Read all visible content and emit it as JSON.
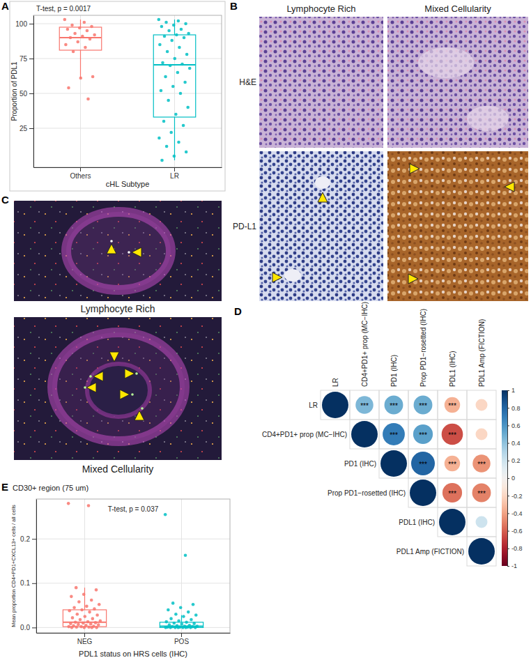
{
  "chart_data": [
    {
      "type": "box",
      "annotation": "T-test, p = 0.0017",
      "x_label": "cHL Subtype",
      "y_label": "Proportion of PDL1",
      "categories": [
        "Others",
        "LR"
      ],
      "colors": [
        "#F8766D",
        "#00BFC4"
      ],
      "boxes": [
        {
          "whisker_low": 61,
          "q1": 81,
          "median": 90,
          "q3": 97.5,
          "whisker_high": 103
        },
        {
          "whisker_low": 2,
          "q1": 33,
          "median": 70.5,
          "q3": 92,
          "whisker_high": 103
        }
      ],
      "points": [
        [
          103,
          101,
          99,
          98,
          97,
          96,
          95,
          93,
          92,
          91,
          90,
          89,
          87,
          85,
          83,
          80,
          62,
          61,
          54,
          46
        ],
        [
          103,
          102,
          101,
          100,
          99,
          98,
          96,
          95,
          93,
          92,
          91,
          90,
          88,
          85,
          83,
          80,
          78,
          75,
          72,
          71,
          70,
          68,
          65,
          62,
          58,
          55,
          52,
          50,
          45,
          40,
          35,
          30,
          27,
          22,
          18,
          15,
          12,
          8,
          5,
          2
        ]
      ],
      "ylim": [
        -3,
        106
      ],
      "yticks": [
        25,
        50,
        75,
        100
      ],
      "grid": true
    },
    {
      "type": "correlation",
      "variables": [
        "LR",
        "CD4+PD1+ prop (MC−IHC)",
        "PD1 (IHC)",
        "Prop PD1−rosetted (IHC)",
        "PDL1 (IHC)",
        "PDL1 Amp (FICTION)"
      ],
      "values": [
        [
          1,
          0.45,
          0.5,
          0.5,
          -0.35,
          -0.2
        ],
        [
          null,
          1,
          0.7,
          0.55,
          -0.65,
          -0.2
        ],
        [
          null,
          null,
          1,
          0.8,
          -0.35,
          -0.45
        ],
        [
          null,
          null,
          null,
          1,
          -0.55,
          -0.5
        ],
        [
          null,
          null,
          null,
          null,
          1,
          0.2
        ],
        [
          null,
          null,
          null,
          null,
          null,
          1
        ]
      ],
      "significance": [
        [
          null,
          "***",
          "***",
          "***",
          "***",
          null
        ],
        [
          null,
          null,
          "***",
          "***",
          "***",
          null
        ],
        [
          null,
          null,
          null,
          "***",
          "***",
          "***"
        ],
        [
          null,
          null,
          null,
          null,
          "***",
          "***"
        ],
        [
          null,
          null,
          null,
          null,
          null,
          null
        ],
        [
          null,
          null,
          null,
          null,
          null,
          null
        ]
      ],
      "colorbar": {
        "range": [
          -1,
          1
        ],
        "ticks": [
          1,
          0.8,
          0.6,
          0.4,
          0.2,
          0,
          -0.2,
          -0.4,
          -0.6,
          -0.8,
          -1
        ]
      }
    },
    {
      "type": "box",
      "title": "CD30+ region (75 um)",
      "annotation": "T-test, p = 0.037",
      "x_label": "PDL1 status on HRS cells (IHC)",
      "y_label": "Mean proportion CD4+PD1+CXCL13+ cells / all cells",
      "categories": [
        "NEG",
        "POS"
      ],
      "colors": [
        "#F8766D",
        "#00BFC4"
      ],
      "boxes": [
        {
          "whisker_low": 0,
          "q1": 0.002,
          "median": 0.012,
          "q3": 0.04,
          "whisker_high": 0.09
        },
        {
          "whisker_low": 0,
          "q1": 0,
          "median": 0.003,
          "q3": 0.012,
          "whisker_high": 0.028
        }
      ],
      "points": [
        [
          0.28,
          0.275,
          0.09,
          0.085,
          0.075,
          0.07,
          0.062,
          0.058,
          0.052,
          0.048,
          0.045,
          0.042,
          0.04,
          0.038,
          0.035,
          0.03,
          0.028,
          0.025,
          0.022,
          0.02,
          0.018,
          0.015,
          0.013,
          0.012,
          0.011,
          0.01,
          0.009,
          0.008,
          0.007,
          0.006,
          0.005,
          0.004,
          0.003,
          0.002,
          0.002,
          0.001,
          0.001,
          0,
          0,
          0,
          0
        ],
        [
          0.255,
          0.163,
          0.055,
          0.052,
          0.045,
          0.04,
          0.035,
          0.03,
          0.028,
          0.025,
          0.02,
          0.018,
          0.015,
          0.013,
          0.012,
          0.01,
          0.009,
          0.008,
          0.006,
          0.005,
          0.004,
          0.003,
          0.003,
          0.002,
          0.002,
          0.001,
          0.001,
          0.001,
          0,
          0,
          0,
          0,
          0,
          0,
          0,
          0
        ]
      ],
      "ylim": [
        -0.012,
        0.29
      ],
      "yticks": [
        {
          "value": 0,
          "label": "0.0"
        },
        0.1,
        0.2
      ],
      "grid": true
    }
  ],
  "panels": {
    "labels": [
      "A",
      "B",
      "C",
      "D",
      "E"
    ],
    "B": {
      "columns": [
        "Lymphocyte Rich",
        "Mixed Cellularity"
      ],
      "rows": [
        "H&E",
        "PD-L1"
      ]
    },
    "C": {
      "captions": [
        "Lymphocyte Rich",
        "Mixed Cellularity"
      ]
    }
  }
}
